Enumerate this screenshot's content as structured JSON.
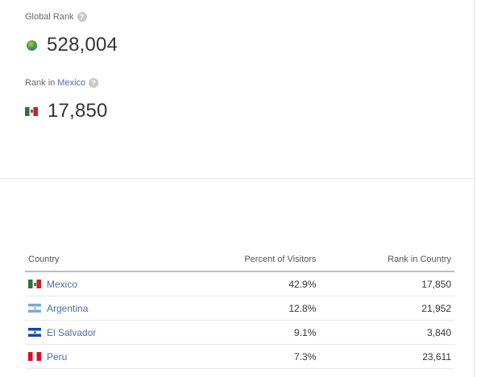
{
  "global_rank": {
    "label": "Global Rank",
    "help": "?",
    "icon": "globe-icon",
    "value": "528,004"
  },
  "country_rank": {
    "label_prefix": "Rank in",
    "country": "Mexico",
    "help": "?",
    "icon": "flag-mexico-icon",
    "value": "17,850"
  },
  "table": {
    "headers": {
      "country": "Country",
      "percent": "Percent of Visitors",
      "rank": "Rank in Country"
    },
    "rows": [
      {
        "country": "Mexico",
        "flag": "flag-mexico-icon",
        "percent": "42.9%",
        "rank": "17,850"
      },
      {
        "country": "Argentina",
        "flag": "flag-argentina-icon",
        "percent": "12.8%",
        "rank": "21,952"
      },
      {
        "country": "El Salvador",
        "flag": "flag-el-salvador-icon",
        "percent": "9.1%",
        "rank": "3,840"
      },
      {
        "country": "Peru",
        "flag": "flag-peru-icon",
        "percent": "7.3%",
        "rank": "23,611"
      }
    ]
  },
  "colors": {
    "link": "#4a6ea8",
    "text": "#333333",
    "muted": "#666666"
  }
}
